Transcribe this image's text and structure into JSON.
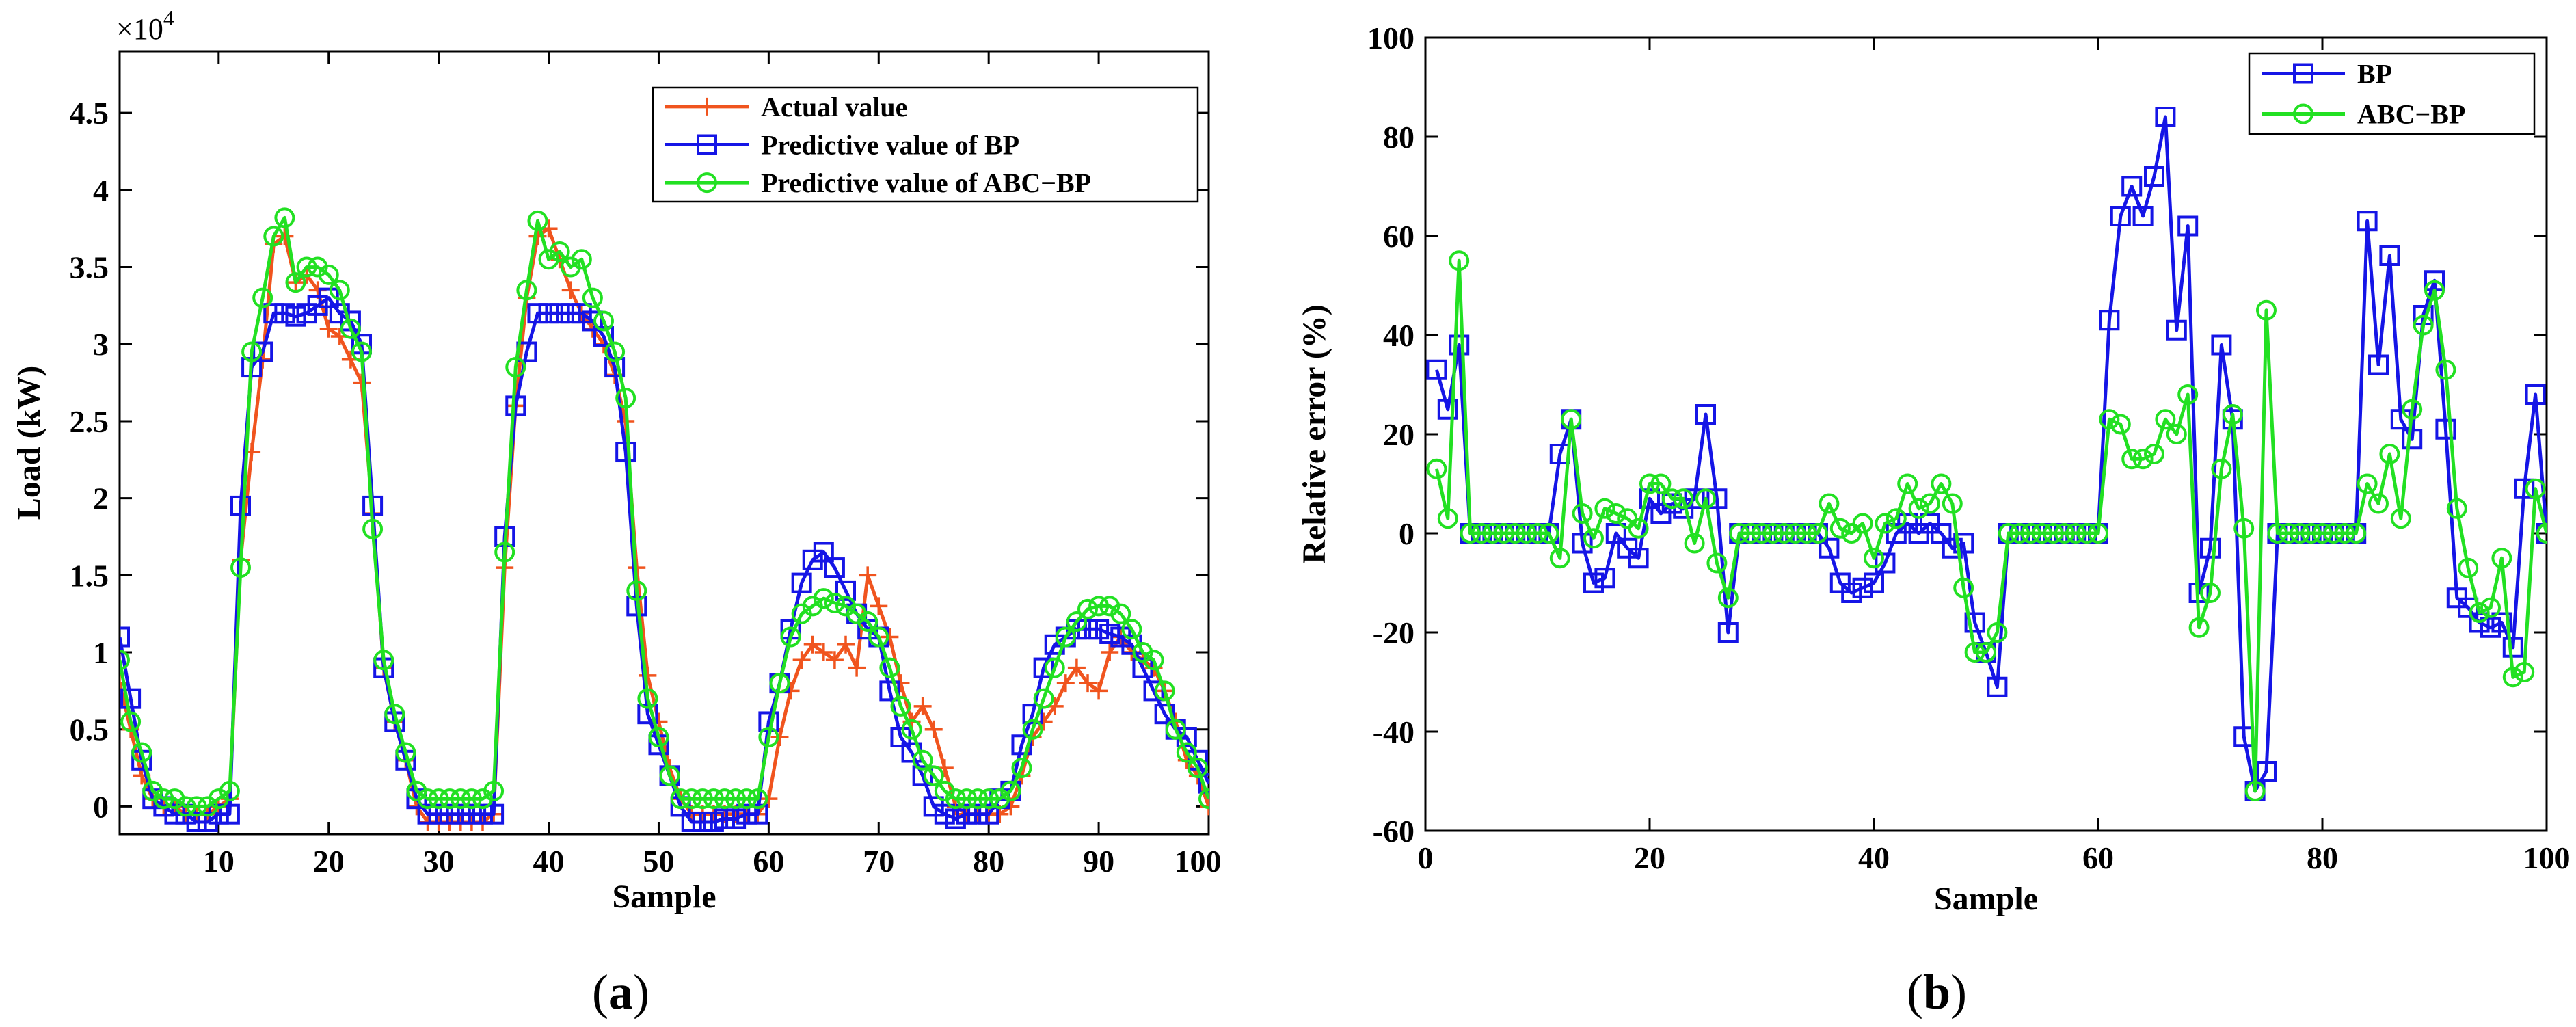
{
  "chart_data": [
    {
      "panel": "a",
      "type": "line",
      "caption_prefix": "(",
      "caption_letter": "a",
      "caption_suffix": ")",
      "xlabel": "Sample",
      "ylabel": "Load (kW)",
      "exponent_label": "×10",
      "exponent_power": "4",
      "xlim": [
        1,
        100
      ],
      "ylim": [
        -0.18,
        4.9
      ],
      "xticks": [
        10,
        20,
        30,
        40,
        50,
        60,
        70,
        80,
        90,
        100
      ],
      "yticks": [
        0,
        0.5,
        1,
        1.5,
        2,
        2.5,
        3,
        3.5,
        4,
        4.5
      ],
      "ytick_labels": [
        "0",
        "0.5",
        "1",
        "1.5",
        "2",
        "2.5",
        "3",
        "3.5",
        "4",
        "4.5"
      ],
      "legend_position": "top-right",
      "series": [
        {
          "name": "Actual value",
          "color": "#f0541e",
          "marker": "plus",
          "values": [
            0.8,
            0.5,
            0.2,
            0.05,
            0.0,
            0.0,
            -0.05,
            -0.05,
            -0.05,
            0.0,
            0.05,
            1.6,
            2.3,
            2.9,
            3.65,
            3.7,
            3.4,
            3.45,
            3.35,
            3.1,
            3.05,
            2.9,
            2.75,
            1.9,
            0.9,
            0.55,
            0.3,
            0.0,
            -0.1,
            -0.1,
            -0.1,
            -0.1,
            -0.1,
            -0.1,
            -0.05,
            1.55,
            2.6,
            3.3,
            3.7,
            3.75,
            3.55,
            3.35,
            3.2,
            3.1,
            3.0,
            2.8,
            2.5,
            1.55,
            0.85,
            0.55,
            0.25,
            0.05,
            -0.05,
            -0.05,
            -0.05,
            -0.05,
            -0.05,
            -0.05,
            -0.05,
            0.05,
            0.45,
            0.75,
            0.95,
            1.05,
            1.0,
            0.95,
            1.05,
            0.9,
            1.5,
            1.3,
            1.1,
            0.8,
            0.55,
            0.65,
            0.5,
            0.25,
            0.0,
            -0.05,
            -0.05,
            -0.05,
            -0.05,
            0.0,
            0.2,
            0.45,
            0.55,
            0.65,
            0.8,
            0.9,
            0.8,
            0.75,
            1.0,
            1.1,
            1.0,
            0.95,
            0.9,
            0.75,
            0.55,
            0.3,
            0.2,
            0.0
          ]
        },
        {
          "name": "Predictive value of BP",
          "color": "#1515e6",
          "marker": "square",
          "values": [
            1.1,
            0.7,
            0.3,
            0.05,
            0.0,
            -0.05,
            -0.05,
            -0.1,
            -0.1,
            -0.05,
            -0.05,
            1.95,
            2.85,
            2.95,
            3.2,
            3.2,
            3.18,
            3.2,
            3.25,
            3.3,
            3.2,
            3.15,
            3.0,
            1.95,
            0.9,
            0.55,
            0.3,
            0.05,
            -0.05,
            -0.05,
            -0.05,
            -0.05,
            -0.05,
            -0.05,
            -0.05,
            1.75,
            2.6,
            2.95,
            3.2,
            3.2,
            3.2,
            3.2,
            3.2,
            3.15,
            3.05,
            2.85,
            2.3,
            1.3,
            0.6,
            0.4,
            0.2,
            0.0,
            -0.1,
            -0.1,
            -0.1,
            -0.08,
            -0.08,
            -0.05,
            -0.05,
            0.55,
            0.8,
            1.15,
            1.45,
            1.6,
            1.65,
            1.55,
            1.4,
            1.25,
            1.15,
            1.1,
            0.75,
            0.45,
            0.35,
            0.2,
            0.0,
            -0.05,
            -0.08,
            -0.05,
            -0.05,
            -0.05,
            0.05,
            0.1,
            0.4,
            0.6,
            0.9,
            1.05,
            1.1,
            1.15,
            1.15,
            1.15,
            1.12,
            1.1,
            1.05,
            0.9,
            0.75,
            0.6,
            0.5,
            0.45,
            0.3,
            0.15
          ]
        },
        {
          "name": "Predictive value of ABC−BP",
          "color": "#22e022",
          "marker": "circle",
          "values": [
            0.95,
            0.55,
            0.35,
            0.1,
            0.05,
            0.05,
            0.0,
            0.0,
            0.0,
            0.05,
            0.1,
            1.55,
            2.95,
            3.3,
            3.7,
            3.82,
            3.4,
            3.5,
            3.5,
            3.45,
            3.35,
            3.1,
            2.95,
            1.8,
            0.95,
            0.6,
            0.35,
            0.1,
            0.05,
            0.05,
            0.05,
            0.05,
            0.05,
            0.05,
            0.1,
            1.65,
            2.85,
            3.35,
            3.8,
            3.55,
            3.6,
            3.5,
            3.55,
            3.3,
            3.15,
            2.95,
            2.65,
            1.4,
            0.7,
            0.45,
            0.2,
            0.05,
            0.05,
            0.05,
            0.05,
            0.05,
            0.05,
            0.05,
            0.05,
            0.45,
            0.8,
            1.1,
            1.25,
            1.3,
            1.35,
            1.32,
            1.3,
            1.25,
            1.2,
            1.1,
            0.9,
            0.65,
            0.5,
            0.3,
            0.2,
            0.1,
            0.05,
            0.05,
            0.05,
            0.05,
            0.05,
            0.1,
            0.25,
            0.5,
            0.7,
            0.9,
            1.1,
            1.2,
            1.28,
            1.3,
            1.3,
            1.25,
            1.15,
            1.0,
            0.95,
            0.75,
            0.5,
            0.35,
            0.25,
            0.05
          ]
        }
      ]
    },
    {
      "panel": "b",
      "type": "line",
      "caption_prefix": "(",
      "caption_letter": "b",
      "caption_suffix": ")",
      "xlabel": "Sample",
      "ylabel": "Relative error (%)",
      "xlim": [
        0,
        100
      ],
      "ylim": [
        -60,
        100
      ],
      "xticks": [
        0,
        20,
        40,
        60,
        80,
        100
      ],
      "yticks": [
        -60,
        -40,
        -20,
        0,
        20,
        40,
        60,
        80,
        100
      ],
      "ytick_labels": [
        "-60",
        "-40",
        "-20",
        "0",
        "20",
        "40",
        "60",
        "80",
        "100"
      ],
      "legend_position": "top-right",
      "series": [
        {
          "name": "BP",
          "color": "#1515e6",
          "marker": "square",
          "values": [
            33,
            25,
            38,
            0,
            0,
            0,
            0,
            0,
            0,
            0,
            0,
            16,
            23,
            -2,
            -10,
            -9,
            0,
            -3,
            -5,
            7,
            4,
            6,
            5,
            7,
            24,
            7,
            -20,
            0,
            0,
            0,
            0,
            0,
            0,
            0,
            0,
            -3,
            -10,
            -12,
            -11,
            -10,
            -6,
            0,
            2,
            0,
            2,
            0,
            -3,
            -2,
            -18,
            -24,
            -31,
            0,
            0,
            0,
            0,
            0,
            0,
            0,
            0,
            0,
            43,
            64,
            70,
            64,
            72,
            84,
            41,
            62,
            -12,
            -3,
            38,
            23,
            -41,
            -52,
            -48,
            0,
            0,
            0,
            0,
            0,
            0,
            0,
            0,
            63,
            34,
            56,
            23,
            19,
            44,
            51,
            21,
            -13,
            -15,
            -18,
            -19,
            -18,
            -23,
            9,
            28,
            0
          ]
        },
        {
          "name": "ABC−BP",
          "color": "#22e022",
          "marker": "circle",
          "values": [
            13,
            3,
            55,
            0,
            0,
            0,
            0,
            0,
            0,
            0,
            0,
            -5,
            23,
            4,
            -1,
            5,
            4,
            3,
            1,
            10,
            10,
            7,
            7,
            -2,
            7,
            -6,
            -13,
            0,
            0,
            0,
            0,
            0,
            0,
            0,
            0,
            6,
            1,
            0,
            2,
            -5,
            2,
            3,
            10,
            5,
            6,
            10,
            6,
            -11,
            -24,
            -24,
            -20,
            0,
            0,
            0,
            0,
            0,
            0,
            0,
            0,
            0,
            23,
            22,
            15,
            15,
            16,
            23,
            20,
            28,
            -19,
            -12,
            13,
            24,
            1,
            -52,
            45,
            0,
            0,
            0,
            0,
            0,
            0,
            0,
            0,
            10,
            6,
            16,
            3,
            25,
            42,
            49,
            33,
            5,
            -7,
            -16,
            -15,
            -5,
            -29,
            -28,
            9,
            0
          ]
        }
      ]
    }
  ]
}
